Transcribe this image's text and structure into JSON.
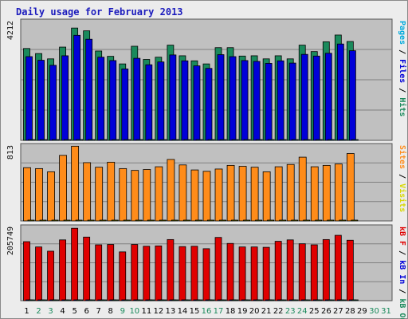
{
  "title": "Daily usage for February 2013",
  "colors": {
    "pages": "#0000e6",
    "files": "#0000d8",
    "hits": "#1a8a5c",
    "visits": "#d8d800",
    "sites": "#ff8c1a",
    "kb_in": "#0000d8",
    "kb_out": "#1a8a5c",
    "kb_f": "#e00000",
    "weekday": "#000000",
    "weekend": "#1a8a5c",
    "panel_bg": "#c0c0c0",
    "grid": "#808080"
  },
  "chart_data": [
    {
      "type": "bar",
      "name": "hits-files-pages",
      "y_max_label": "4212",
      "ylim": [
        0,
        4212
      ],
      "right_label": [
        {
          "text": "Pages",
          "color": "#00aadd"
        },
        {
          "text": " / ",
          "color": "#000000"
        },
        {
          "text": "Files",
          "color": "#0000d8"
        },
        {
          "text": " / ",
          "color": "#000000"
        },
        {
          "text": "Hits",
          "color": "#1a8a5c"
        }
      ],
      "categories": [
        "1",
        "2",
        "3",
        "4",
        "5",
        "6",
        "7",
        "8",
        "9",
        "10",
        "11",
        "12",
        "13",
        "14",
        "15",
        "16",
        "17",
        "18",
        "19",
        "20",
        "21",
        "22",
        "23",
        "24",
        "25",
        "26",
        "27",
        "28",
        "29",
        "30",
        "31"
      ],
      "series": [
        {
          "name": "Hits",
          "values": [
            3250,
            3070,
            2880,
            3300,
            3980,
            3880,
            3160,
            2970,
            2700,
            3330,
            2860,
            2940,
            3370,
            2990,
            2810,
            2700,
            3280,
            3280,
            2980,
            2990,
            2880,
            2990,
            2880,
            3370,
            3140,
            3490,
            3730,
            3500,
            0,
            0,
            0
          ]
        },
        {
          "name": "Files",
          "values": [
            2960,
            2830,
            2650,
            2990,
            3720,
            3580,
            2940,
            2820,
            2520,
            2900,
            2670,
            2770,
            3020,
            2810,
            2630,
            2540,
            3030,
            2960,
            2820,
            2790,
            2720,
            2810,
            2730,
            3040,
            2980,
            3080,
            3410,
            3170,
            0,
            0,
            0
          ]
        },
        {
          "name": "Pages",
          "values": [
            0,
            0,
            0,
            0,
            0,
            0,
            0,
            0,
            0,
            0,
            0,
            0,
            0,
            0,
            0,
            0,
            0,
            0,
            0,
            0,
            0,
            0,
            0,
            0,
            0,
            0,
            0,
            0,
            0,
            0,
            0
          ]
        }
      ]
    },
    {
      "type": "bar",
      "name": "sites-visits",
      "y_max_label": "813",
      "ylim": [
        0,
        813
      ],
      "right_label": [
        {
          "text": "Sites",
          "color": "#ff8c1a"
        },
        {
          "text": " / ",
          "color": "#000000"
        },
        {
          "text": "Visits",
          "color": "#d8d800"
        }
      ],
      "categories": [
        "1",
        "2",
        "3",
        "4",
        "5",
        "6",
        "7",
        "8",
        "9",
        "10",
        "11",
        "12",
        "13",
        "14",
        "15",
        "16",
        "17",
        "18",
        "19",
        "20",
        "21",
        "22",
        "23",
        "24",
        "25",
        "26",
        "27",
        "28",
        "29",
        "30",
        "31"
      ],
      "series": [
        {
          "name": "Sites",
          "values": [
            575,
            565,
            530,
            710,
            810,
            630,
            580,
            635,
            565,
            545,
            555,
            585,
            665,
            605,
            550,
            535,
            560,
            600,
            590,
            580,
            530,
            585,
            610,
            690,
            585,
            600,
            615,
            730,
            0,
            0,
            0
          ]
        },
        {
          "name": "Visits",
          "values": [
            0,
            0,
            0,
            0,
            0,
            0,
            0,
            0,
            0,
            0,
            0,
            0,
            0,
            0,
            0,
            0,
            0,
            0,
            0,
            0,
            0,
            0,
            0,
            0,
            0,
            0,
            0,
            0,
            0,
            0,
            0
          ]
        }
      ]
    },
    {
      "type": "bar",
      "name": "kbytes",
      "y_max_label": "205749",
      "ylim": [
        0,
        205749
      ],
      "right_label": [
        {
          "text": "kB F",
          "color": "#e00000"
        },
        {
          "text": " / ",
          "color": "#000000"
        },
        {
          "text": "kB In",
          "color": "#0000d8"
        },
        {
          "text": " / ",
          "color": "#000000"
        },
        {
          "text": "kB Out",
          "color": "#1a8a5c"
        }
      ],
      "categories": [
        "1",
        "2",
        "3",
        "4",
        "5",
        "6",
        "7",
        "8",
        "9",
        "10",
        "11",
        "12",
        "13",
        "14",
        "15",
        "16",
        "17",
        "18",
        "19",
        "20",
        "21",
        "22",
        "23",
        "24",
        "25",
        "26",
        "27",
        "28",
        "29",
        "30",
        "31"
      ],
      "series": [
        {
          "name": "kB F",
          "values": [
            165000,
            150000,
            138000,
            170000,
            203000,
            178000,
            156000,
            157000,
            136000,
            157000,
            152000,
            153000,
            171000,
            151000,
            152000,
            145000,
            177000,
            160000,
            150000,
            150000,
            149000,
            166000,
            170000,
            159000,
            156000,
            171000,
            183000,
            169000,
            0,
            0,
            0
          ]
        },
        {
          "name": "kB In",
          "values": [
            0,
            0,
            0,
            0,
            0,
            0,
            0,
            0,
            0,
            0,
            0,
            0,
            0,
            0,
            0,
            0,
            0,
            0,
            0,
            0,
            0,
            0,
            0,
            0,
            0,
            0,
            0,
            0,
            0,
            0,
            0
          ]
        },
        {
          "name": "kB Out",
          "values": [
            0,
            0,
            0,
            0,
            0,
            0,
            0,
            0,
            0,
            0,
            0,
            0,
            0,
            0,
            0,
            0,
            0,
            0,
            0,
            0,
            0,
            0,
            0,
            0,
            0,
            0,
            0,
            0,
            0,
            0,
            0
          ]
        }
      ]
    }
  ],
  "days": [
    {
      "label": "1",
      "weekend": false
    },
    {
      "label": "2",
      "weekend": true
    },
    {
      "label": "3",
      "weekend": true
    },
    {
      "label": "4",
      "weekend": false
    },
    {
      "label": "5",
      "weekend": false
    },
    {
      "label": "6",
      "weekend": false
    },
    {
      "label": "7",
      "weekend": false
    },
    {
      "label": "8",
      "weekend": false
    },
    {
      "label": "9",
      "weekend": true
    },
    {
      "label": "10",
      "weekend": true
    },
    {
      "label": "11",
      "weekend": false
    },
    {
      "label": "12",
      "weekend": false
    },
    {
      "label": "13",
      "weekend": false
    },
    {
      "label": "14",
      "weekend": false
    },
    {
      "label": "15",
      "weekend": false
    },
    {
      "label": "16",
      "weekend": true
    },
    {
      "label": "17",
      "weekend": true
    },
    {
      "label": "18",
      "weekend": false
    },
    {
      "label": "19",
      "weekend": false
    },
    {
      "label": "20",
      "weekend": false
    },
    {
      "label": "21",
      "weekend": false
    },
    {
      "label": "22",
      "weekend": false
    },
    {
      "label": "23",
      "weekend": true
    },
    {
      "label": "24",
      "weekend": true
    },
    {
      "label": "25",
      "weekend": false
    },
    {
      "label": "26",
      "weekend": false
    },
    {
      "label": "27",
      "weekend": false
    },
    {
      "label": "28",
      "weekend": false
    },
    {
      "label": "29",
      "weekend": false
    },
    {
      "label": "30",
      "weekend": true
    },
    {
      "label": "31",
      "weekend": true
    }
  ]
}
